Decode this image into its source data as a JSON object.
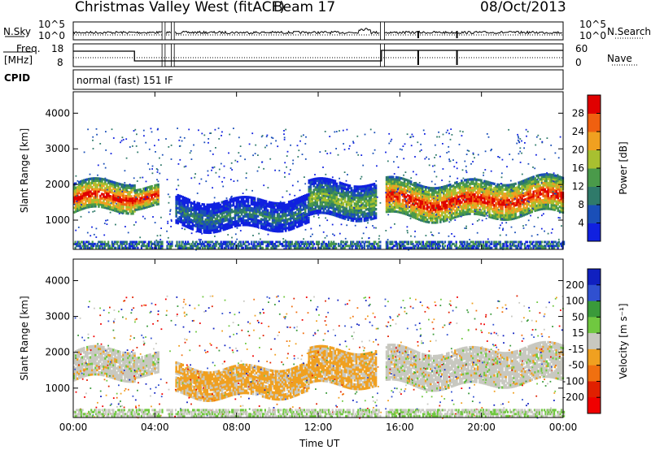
{
  "header": {
    "title": "Christmas Valley West (fitACF)",
    "beam": "Beam 17",
    "date": "08/Oct/2013"
  },
  "side_panels": {
    "nsky_label": "N.Sky",
    "nsky_ticks": [
      "10^5",
      "10^0"
    ],
    "nsearch_label": "N.Search",
    "freq_label_1": "Freq.",
    "freq_label_2": "[MHz]",
    "freq_ticks": [
      "18",
      "8"
    ],
    "nave_label": "Nave",
    "nave_ticks": [
      "60",
      "0"
    ],
    "cpid_label": "CPID",
    "cpid_value": "normal (fast) 151 IF"
  },
  "chart_data": [
    {
      "type": "heatmap",
      "name": "power",
      "ylabel": "Slant Range [km]",
      "xlabel": "Time UT",
      "x_ticks": [
        "00:00",
        "04:00",
        "08:00",
        "12:00",
        "16:00",
        "20:00",
        "00:00"
      ],
      "xlim_hours": [
        0,
        24
      ],
      "y_ticks": [
        1000,
        2000,
        3000,
        4000
      ],
      "ylim": [
        180,
        4600
      ],
      "colorbar": {
        "label": "Power [dB]",
        "ticks": [
          4,
          8,
          12,
          16,
          20,
          24,
          28
        ],
        "range": [
          0,
          32
        ],
        "colors": [
          "#1020e0",
          "#1a4fb8",
          "#2f7a6a",
          "#4a9a4a",
          "#a8c030",
          "#f0a020",
          "#f06010",
          "#e00000"
        ]
      },
      "gaps_hours": [
        [
          4.35,
          4.5
        ],
        [
          4.8,
          4.95
        ],
        [
          15.05,
          15.25
        ]
      ],
      "echo_bands": [
        {
          "t0": 0.0,
          "t1": 3.0,
          "r0": 1200,
          "r1": 2000,
          "level": "high"
        },
        {
          "t0": 3.0,
          "t1": 4.2,
          "r0": 1300,
          "r1": 1900,
          "level": "high"
        },
        {
          "t0": 5.0,
          "t1": 11.5,
          "r0": 800,
          "r1": 1600,
          "level": "low"
        },
        {
          "t0": 11.5,
          "t1": 14.8,
          "r0": 1000,
          "r1": 2000,
          "level": "mid"
        },
        {
          "t0": 15.3,
          "t1": 24.0,
          "r0": 1100,
          "r1": 2100,
          "level": "high"
        }
      ]
    },
    {
      "type": "heatmap",
      "name": "velocity",
      "ylabel": "Slant Range [km]",
      "xlabel": "Time UT",
      "x_ticks": [
        "00:00",
        "04:00",
        "08:00",
        "12:00",
        "16:00",
        "20:00",
        "00:00"
      ],
      "xlim_hours": [
        0,
        24
      ],
      "y_ticks": [
        1000,
        2000,
        3000,
        4000
      ],
      "ylim": [
        180,
        4600
      ],
      "colorbar": {
        "label": "Velocity [m s⁻¹]",
        "ticks": [
          200,
          100,
          50,
          15,
          -15,
          -50,
          -100,
          -200
        ],
        "colors": [
          "#1020c0",
          "#3050d0",
          "#3a9a3a",
          "#70c840",
          "#c8c8c0",
          "#f0a020",
          "#f07010",
          "#e02000",
          "#f00000"
        ]
      }
    }
  ],
  "xlabel": "Time UT"
}
